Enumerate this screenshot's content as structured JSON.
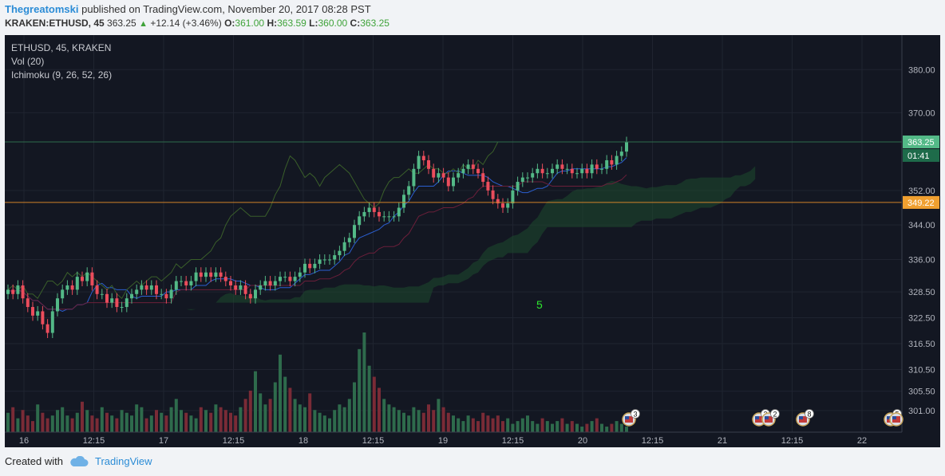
{
  "header": {
    "author": "Thegreatomski",
    "published": "published on TradingView.com, November 20, 2017 08:28 PST",
    "symbol": "KRAKEN:ETHUSD, 45",
    "last": "363.25",
    "change": "+12.14 (+3.46%)",
    "o_label": "O:",
    "o_val": "361.00",
    "h_label": "H:",
    "h_val": "363.59",
    "l_label": "L:",
    "l_val": "360.00",
    "c_label": "C:",
    "c_val": "363.25"
  },
  "legend": {
    "title": "ETHUSD, 45, KRAKEN",
    "vol": "Vol (20)",
    "ichimoku": "Ichimoku (9, 26, 52, 26)"
  },
  "annotation": "5",
  "price_badges": {
    "last": "363.25",
    "timer": "01:41",
    "level": "349.22"
  },
  "footer": {
    "created": "Created with",
    "brand": "TradingView"
  },
  "colors": {
    "background": "#131722",
    "up": "#53b987",
    "down": "#eb4d5c",
    "level_line": "#d1832a",
    "tenkan": "#2b5fd1",
    "kijun": "#6b1f3a"
  },
  "chart_data": {
    "type": "candlestick",
    "interval": "45",
    "symbol": "ETHUSD",
    "exchange": "KRAKEN",
    "y_ticks": [
      301.0,
      305.5,
      310.5,
      316.5,
      322.5,
      328.5,
      336.0,
      344.0,
      352.0,
      370.0,
      380.0
    ],
    "x_ticks": [
      "16",
      "12:15",
      "17",
      "12:15",
      "18",
      "12:15",
      "19",
      "12:15",
      "20",
      "12:15",
      "21",
      "12:15",
      "22"
    ],
    "ylim": [
      296,
      388
    ],
    "horizontal_level": 349.22,
    "last_price": 363.25,
    "closes": [
      329,
      328,
      330,
      327,
      325,
      323,
      324,
      321,
      319,
      324,
      327,
      329,
      330,
      329,
      332,
      331,
      333,
      330,
      328,
      328,
      326,
      327,
      325,
      325,
      327,
      328,
      329,
      330,
      329,
      330,
      328,
      328,
      327,
      329,
      331,
      331,
      330,
      331,
      333,
      332,
      333,
      332,
      333,
      332,
      331,
      330,
      329,
      330,
      328,
      327,
      329,
      330,
      331,
      330,
      331,
      332,
      332,
      331,
      332,
      333,
      335,
      334,
      335,
      336,
      336,
      336,
      337,
      338,
      340,
      341,
      344,
      346,
      347,
      348,
      347,
      346,
      346,
      346,
      346,
      348,
      351,
      353,
      357,
      360,
      359,
      357,
      355,
      356,
      355,
      353,
      355,
      356,
      357,
      358,
      357,
      356,
      354,
      352,
      350,
      349,
      348,
      349,
      352,
      354,
      355,
      355,
      356,
      357,
      356,
      356,
      357,
      358,
      357,
      357,
      356,
      356,
      357,
      356,
      358,
      357,
      357,
      359,
      358,
      360,
      361,
      363.25
    ],
    "volume": [
      7,
      9,
      5,
      8,
      6,
      4,
      10,
      7,
      5,
      6,
      8,
      9,
      6,
      5,
      7,
      11,
      8,
      6,
      5,
      9,
      7,
      6,
      5,
      8,
      7,
      6,
      10,
      9,
      5,
      6,
      8,
      7,
      6,
      9,
      12,
      8,
      7,
      6,
      5,
      9,
      8,
      7,
      10,
      9,
      8,
      7,
      6,
      9,
      12,
      15,
      22,
      14,
      10,
      12,
      18,
      28,
      20,
      16,
      12,
      10,
      9,
      14,
      8,
      7,
      6,
      5,
      8,
      10,
      9,
      12,
      18,
      30,
      36,
      24,
      20,
      16,
      12,
      10,
      9,
      8,
      7,
      6,
      9,
      8,
      7,
      10,
      8,
      12,
      9,
      7,
      6,
      5,
      4,
      6,
      5,
      4,
      7,
      6,
      5,
      6,
      4,
      5,
      3,
      4,
      5,
      6,
      4,
      3,
      5,
      4,
      3,
      4,
      5,
      3,
      4,
      3,
      2,
      3,
      4,
      5,
      3,
      2,
      3,
      4,
      3,
      2
    ],
    "volume_scale_max": 36
  }
}
